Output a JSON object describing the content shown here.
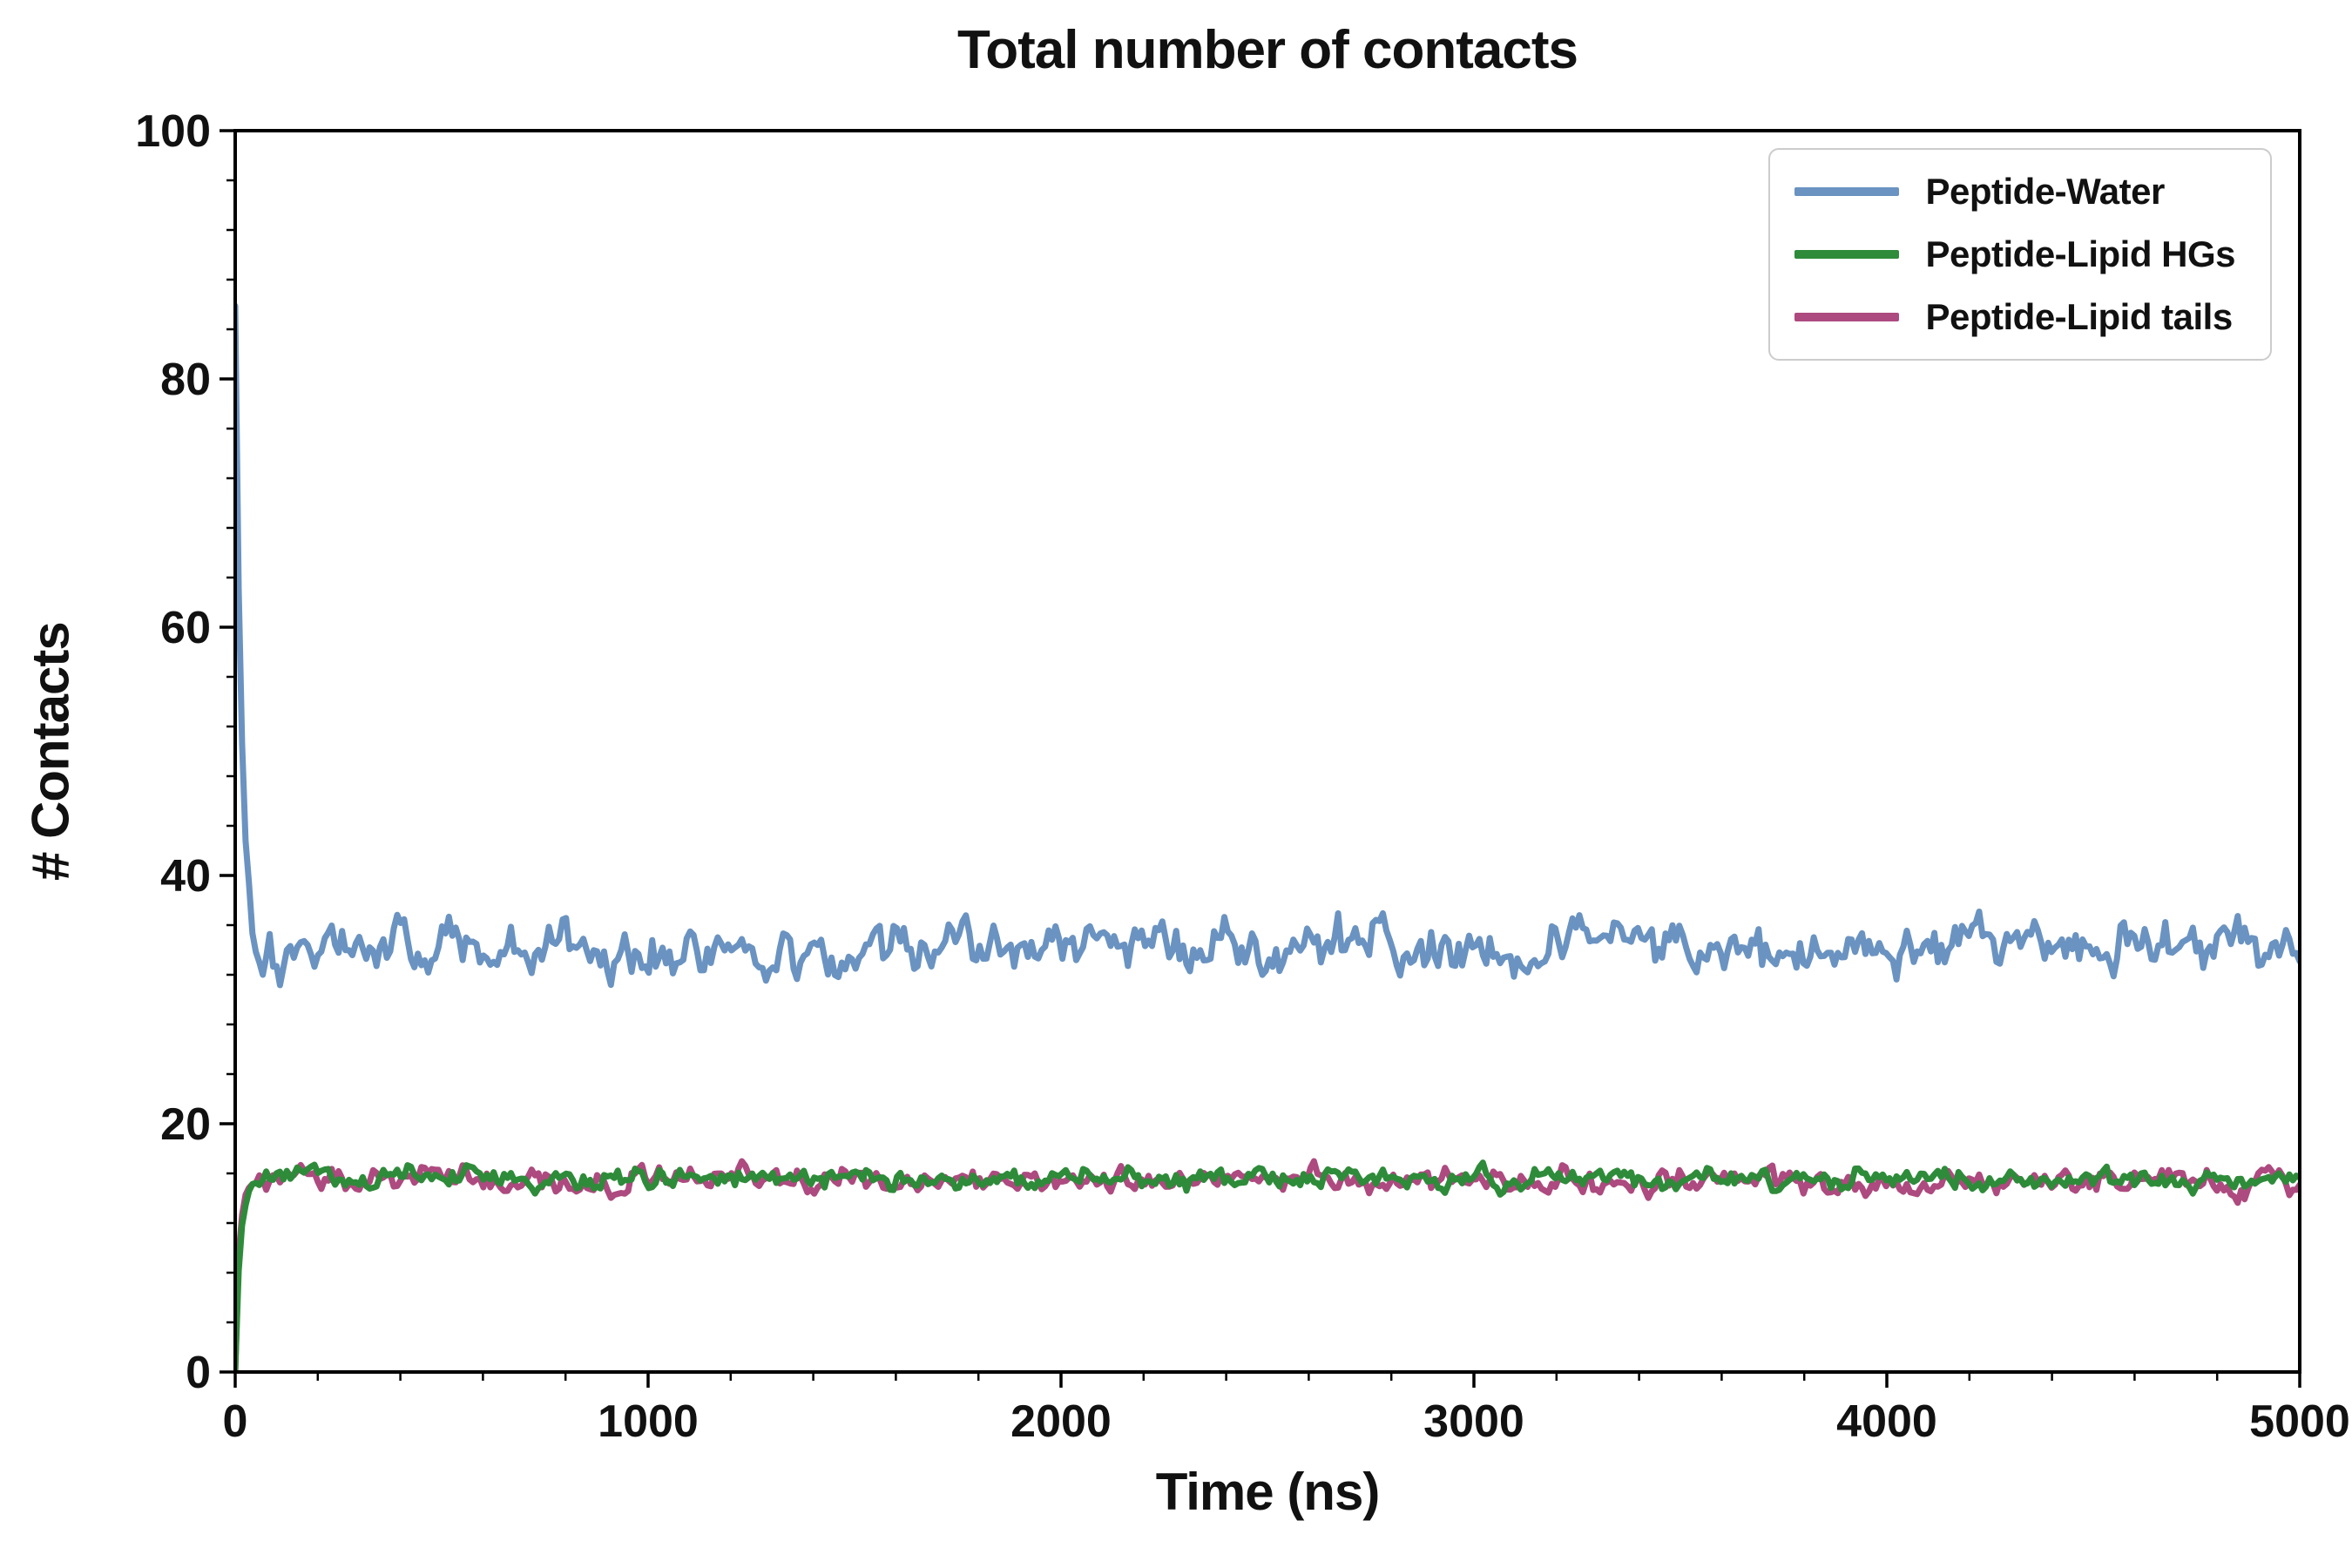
{
  "chart_data": {
    "type": "line",
    "title": "Total number of contacts",
    "xlabel": "Time (ns)",
    "ylabel": "# Contacts",
    "xlim": [
      0,
      5000
    ],
    "ylim": [
      0,
      100
    ],
    "x_major_ticks": [
      0,
      1000,
      2000,
      3000,
      4000,
      5000
    ],
    "y_major_ticks": [
      0,
      20,
      40,
      60,
      80,
      100
    ],
    "x_minor_step": 200,
    "y_minor_step": 4,
    "grid": false,
    "legend_position": "upper right",
    "axis_color": "#000000",
    "background_color": "#ffffff",
    "n_points": 600,
    "series": [
      {
        "name": "Peptide-Water",
        "color": "#6a93c1",
        "start_value": 86,
        "steady_mean": 34.2,
        "noise_amp": 1.9,
        "transient": "decay",
        "transient_tau": 14,
        "seed": 101,
        "observed_range": [
          29.5,
          40.5
        ]
      },
      {
        "name": "Peptide-Lipid HGs",
        "color": "#2e8b3a",
        "start_value": 0,
        "steady_mean": 15.6,
        "noise_amp": 0.75,
        "transient": "rise",
        "transient_tau": 11,
        "seed": 202,
        "observed_range": [
          13.5,
          17.5
        ]
      },
      {
        "name": "Peptide-Lipid tails",
        "color": "#ad4a7f",
        "start_value": 0,
        "steady_mean": 15.4,
        "noise_amp": 0.85,
        "transient": "rise",
        "transient_tau": 9,
        "seed": 303,
        "observed_range": [
          13.0,
          17.5
        ]
      }
    ]
  }
}
